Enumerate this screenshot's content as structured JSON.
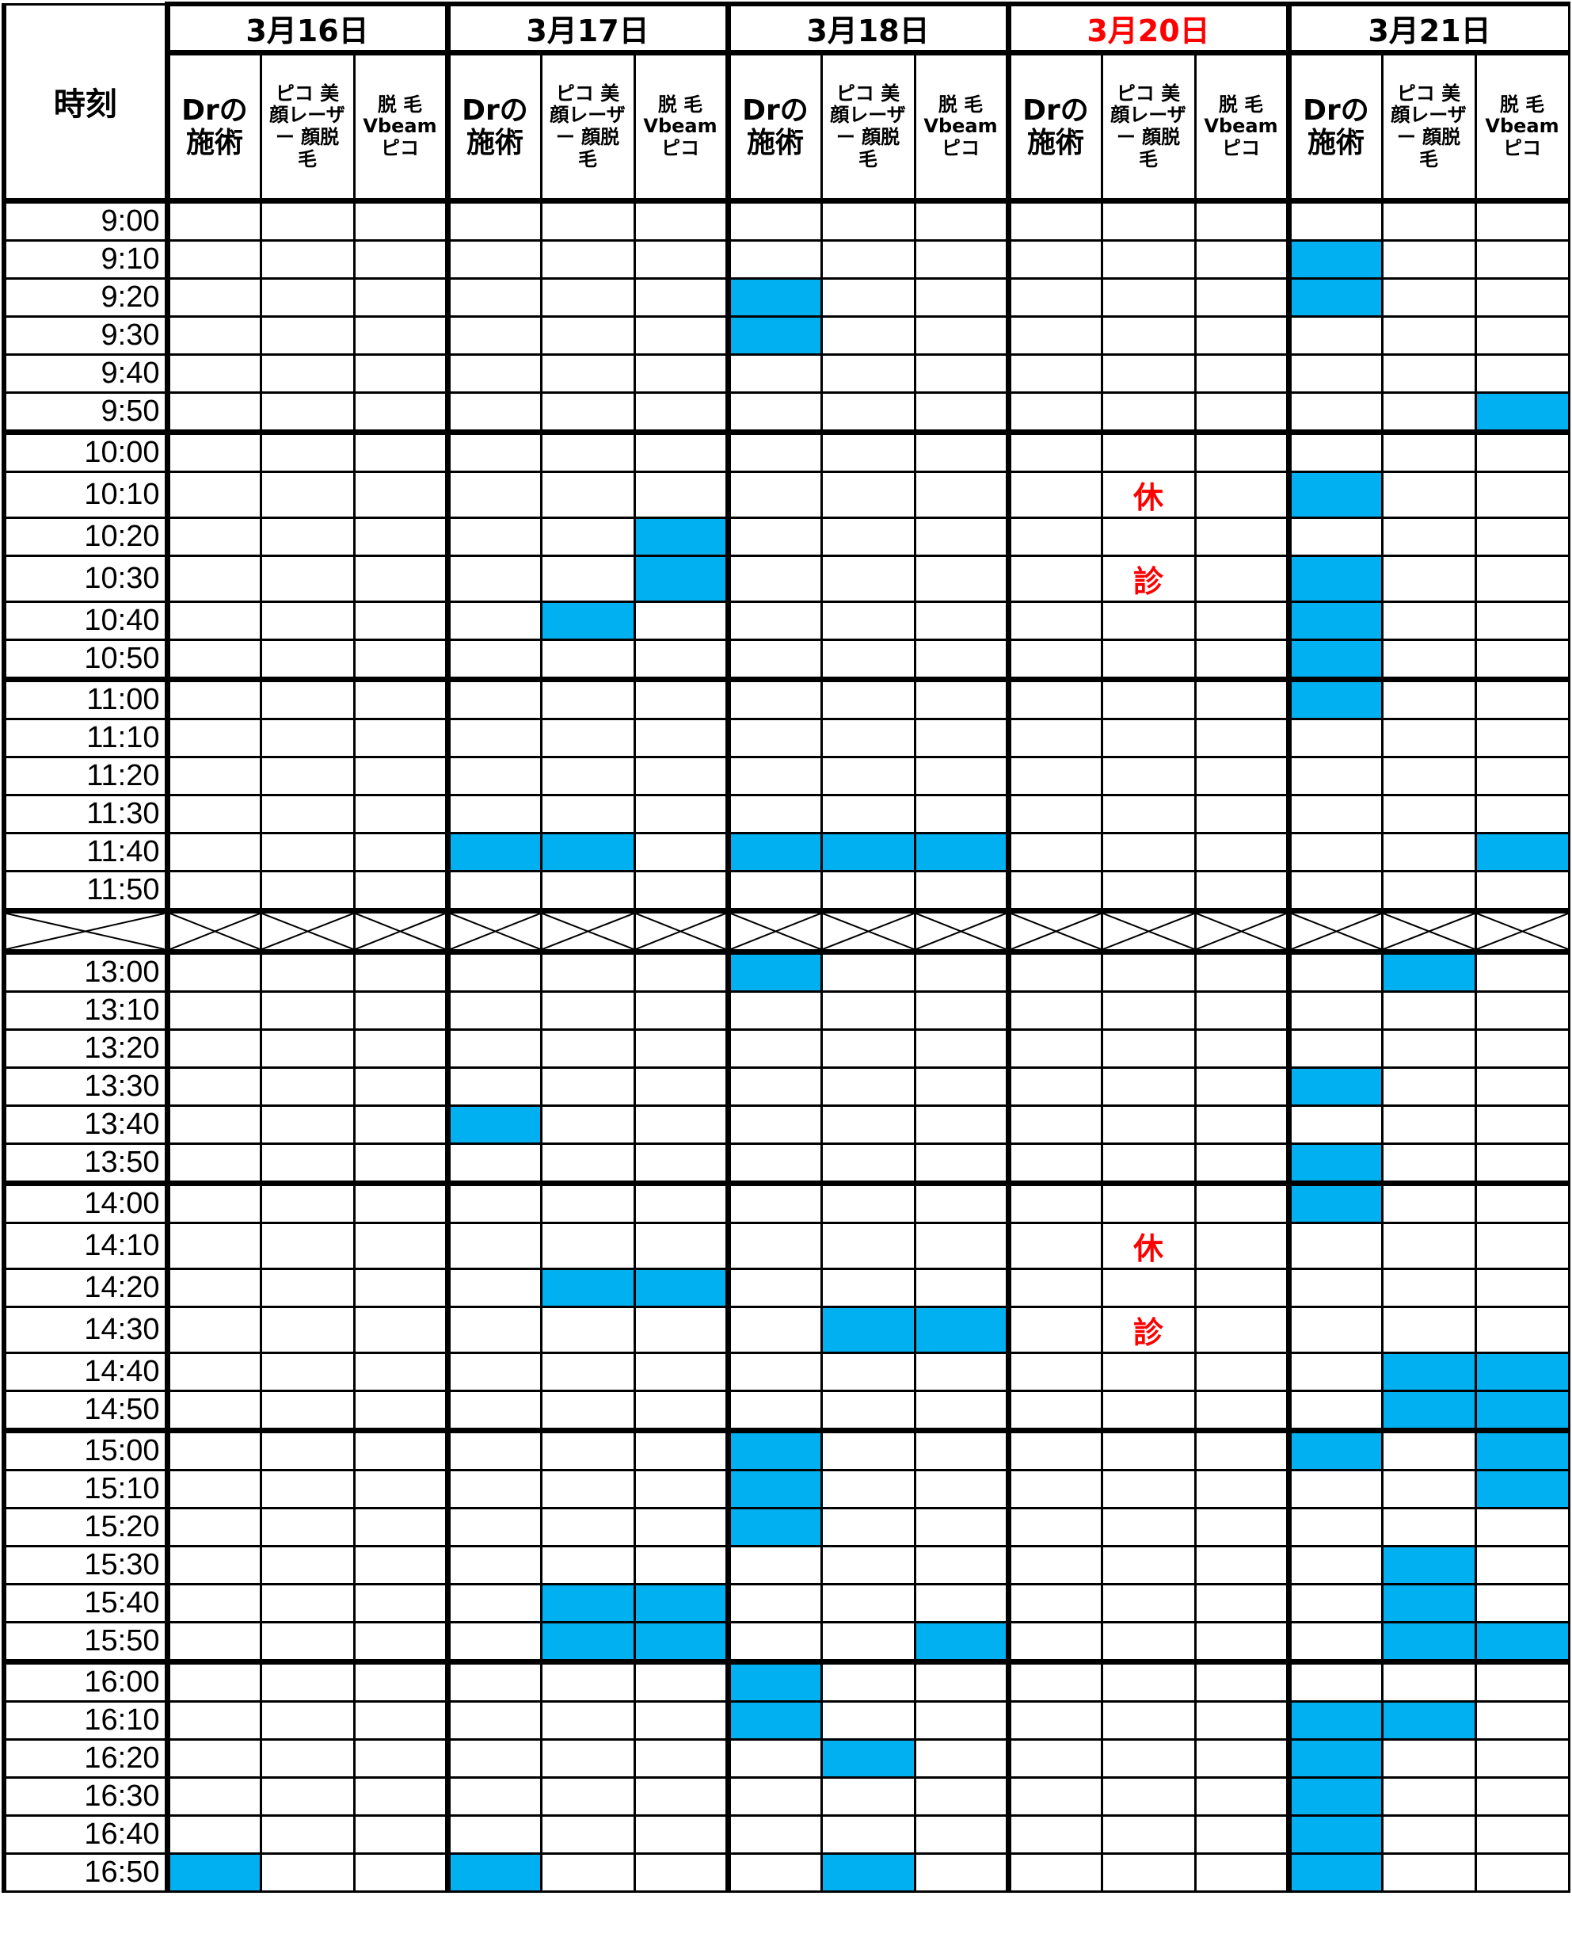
{
  "header": {
    "time_label": "時刻"
  },
  "days": [
    {
      "label": "3月16日",
      "color": "#000000"
    },
    {
      "label": "3月17日",
      "color": "#000000"
    },
    {
      "label": "3月18日",
      "color": "#000000"
    },
    {
      "label": "3月20日",
      "color": "#FF0000"
    },
    {
      "label": "3月21日",
      "color": "#000000"
    }
  ],
  "sub_columns": [
    "Drの施術",
    "ピコ 美顔レーザー 顔脱毛",
    "脱 毛 Vbeam ピコ"
  ],
  "colors": {
    "booked": "#00B0F0",
    "closed_text": "#FF0000"
  },
  "times": [
    "9:00",
    "9:10",
    "9:20",
    "9:30",
    "9:40",
    "9:50",
    "10:00",
    "10:10",
    "10:20",
    "10:30",
    "10:40",
    "10:50",
    "11:00",
    "11:10",
    "11:20",
    "11:30",
    "11:40",
    "11:50",
    "break",
    "13:00",
    "13:10",
    "13:20",
    "13:30",
    "13:40",
    "13:50",
    "14:00",
    "14:10",
    "14:20",
    "14:30",
    "14:40",
    "14:50",
    "15:00",
    "15:10",
    "15:20",
    "15:30",
    "15:40",
    "15:50",
    "16:00",
    "16:10",
    "16:20",
    "16:30",
    "16:40",
    "16:50"
  ],
  "bookings": {
    "9:10": [
      12
    ],
    "9:20": [
      6,
      12
    ],
    "9:30": [
      6
    ],
    "9:50": [
      14
    ],
    "10:10": [
      12
    ],
    "10:20": [
      5
    ],
    "10:30": [
      5,
      12
    ],
    "10:40": [
      4,
      12
    ],
    "10:50": [
      12
    ],
    "11:00": [
      12
    ],
    "11:40": [
      3,
      4,
      6,
      7,
      8,
      14
    ],
    "13:00": [
      6,
      13
    ],
    "13:30": [
      12
    ],
    "13:40": [
      3
    ],
    "13:50": [
      12
    ],
    "14:00": [
      12
    ],
    "14:20": [
      4,
      5
    ],
    "14:30": [
      7,
      8
    ],
    "14:40": [
      13,
      14
    ],
    "14:50": [
      13,
      14
    ],
    "15:00": [
      6,
      12,
      14
    ],
    "15:10": [
      6,
      14
    ],
    "15:20": [
      6
    ],
    "15:30": [
      13
    ],
    "15:40": [
      4,
      5,
      13
    ],
    "15:50": [
      4,
      5,
      8,
      13,
      14
    ],
    "16:00": [
      6
    ],
    "16:10": [
      6,
      12,
      13
    ],
    "16:20": [
      7,
      12
    ],
    "16:30": [
      12
    ],
    "16:40": [
      12
    ],
    "16:50": [
      0,
      3,
      7,
      12
    ]
  },
  "closed_notes": {
    "column": 10,
    "marks": {
      "10:10": "休",
      "10:30": "診",
      "14:10": "休",
      "14:30": "診"
    }
  }
}
